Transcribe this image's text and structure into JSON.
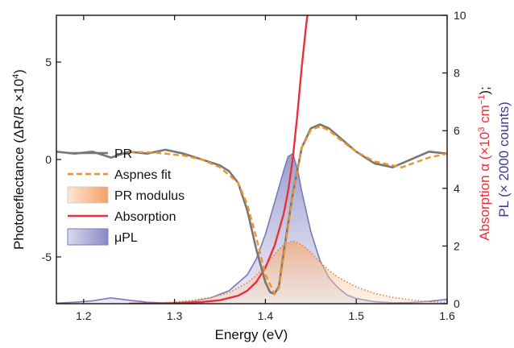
{
  "chart_data": {
    "type": "line",
    "xlabel": "Energy (eV)",
    "x_range": [
      1.17,
      1.6
    ],
    "x_ticks": [
      "1.2",
      "1.3",
      "1.4",
      "1.5",
      "1.6"
    ],
    "left_axis": {
      "label": "Photoreflectance (ΔR/R ×10⁴)",
      "label_parts": [
        "Photoreflectance (ΔR/R ×10",
        "4",
        ")"
      ],
      "range": [
        -7.4,
        7.4
      ],
      "ticks": [
        "5",
        "0",
        "-5"
      ]
    },
    "right_axis": {
      "label_absorption": "Absorption α (×10³ cm⁻¹);",
      "label_absorption_parts": [
        "Absorption α (×10",
        "3",
        " cm",
        "−1",
        ");"
      ],
      "label_pl": "PL (× 2000 counts)",
      "range": [
        0,
        10
      ],
      "ticks": [
        "0",
        "2",
        "4",
        "6",
        "8",
        "10"
      ]
    },
    "colors": {
      "pr": "#777777",
      "aspnes": "#f0922f",
      "pr_modulus": "#f6a56a",
      "absorption": "#e8313a",
      "pl": "#7a7ab8",
      "absorption_axis": "#e8313a",
      "pl_axis": "#3b3b93"
    },
    "legend": [
      {
        "label": "PR",
        "style": "pr-line"
      },
      {
        "label": "Aspnes fit",
        "style": "aspnes-dash"
      },
      {
        "label": "PR modulus",
        "style": "modulus-patch"
      },
      {
        "label": "Absorption",
        "style": "absorption-line"
      },
      {
        "label": "μPL",
        "style": "pl-patch"
      }
    ],
    "series": [
      {
        "name": "PR",
        "axis": "left",
        "x": [
          1.17,
          1.19,
          1.21,
          1.23,
          1.25,
          1.27,
          1.29,
          1.31,
          1.33,
          1.35,
          1.36,
          1.37,
          1.38,
          1.39,
          1.4,
          1.405,
          1.41,
          1.415,
          1.42,
          1.43,
          1.44,
          1.45,
          1.46,
          1.47,
          1.48,
          1.49,
          1.5,
          1.52,
          1.54,
          1.56,
          1.58,
          1.6
        ],
        "y": [
          0.4,
          0.3,
          0.4,
          0.1,
          0.4,
          0.3,
          0.5,
          0.3,
          0.0,
          -0.3,
          -0.6,
          -1.2,
          -2.6,
          -4.6,
          -6.3,
          -6.8,
          -6.9,
          -6.5,
          -4.8,
          -1.8,
          0.6,
          1.6,
          1.8,
          1.6,
          1.2,
          0.8,
          0.4,
          -0.2,
          -0.4,
          0.0,
          0.4,
          0.3
        ]
      },
      {
        "name": "Aspnes fit",
        "axis": "left",
        "x": [
          1.25,
          1.28,
          1.31,
          1.33,
          1.35,
          1.37,
          1.38,
          1.39,
          1.4,
          1.41,
          1.415,
          1.42,
          1.43,
          1.44,
          1.45,
          1.46,
          1.47,
          1.48,
          1.5,
          1.52,
          1.55,
          1.58,
          1.6
        ],
        "y": [
          0.4,
          0.35,
          0.2,
          0.0,
          -0.4,
          -1.2,
          -2.3,
          -4.0,
          -5.9,
          -6.9,
          -6.6,
          -5.0,
          -1.9,
          0.6,
          1.5,
          1.7,
          1.5,
          1.1,
          0.4,
          -0.1,
          -0.4,
          0.1,
          0.3
        ]
      },
      {
        "name": "PR modulus",
        "axis": "right",
        "x": [
          1.28,
          1.3,
          1.32,
          1.34,
          1.36,
          1.38,
          1.39,
          1.4,
          1.41,
          1.42,
          1.43,
          1.44,
          1.45,
          1.46,
          1.47,
          1.48,
          1.5,
          1.52,
          1.54,
          1.56,
          1.58,
          1.6
        ],
        "y": [
          0.02,
          0.06,
          0.12,
          0.22,
          0.38,
          0.72,
          0.98,
          1.32,
          1.72,
          2.05,
          2.18,
          2.05,
          1.78,
          1.45,
          1.15,
          0.92,
          0.58,
          0.36,
          0.22,
          0.13,
          0.07,
          0.04
        ]
      },
      {
        "name": "Absorption",
        "axis": "right",
        "x": [
          1.25,
          1.3,
          1.33,
          1.35,
          1.37,
          1.38,
          1.39,
          1.4,
          1.41,
          1.42,
          1.425,
          1.43,
          1.435,
          1.44,
          1.445,
          1.448
        ],
        "y": [
          0.0,
          0.02,
          0.06,
          0.12,
          0.28,
          0.45,
          0.75,
          1.25,
          2.0,
          3.1,
          3.9,
          5.0,
          6.5,
          8.2,
          9.7,
          10.4
        ]
      },
      {
        "name": "μPL",
        "axis": "right",
        "x": [
          1.17,
          1.19,
          1.21,
          1.23,
          1.25,
          1.27,
          1.29,
          1.3,
          1.32,
          1.34,
          1.36,
          1.38,
          1.39,
          1.4,
          1.41,
          1.42,
          1.425,
          1.43,
          1.435,
          1.44,
          1.45,
          1.46,
          1.47,
          1.48,
          1.49,
          1.5,
          1.52,
          1.54,
          1.56,
          1.58,
          1.6
        ],
        "y": [
          0.02,
          0.05,
          0.1,
          0.2,
          0.12,
          0.05,
          0.02,
          0.03,
          0.08,
          0.2,
          0.45,
          1.0,
          1.55,
          2.4,
          3.5,
          4.6,
          5.1,
          5.2,
          4.7,
          3.9,
          2.5,
          1.5,
          0.9,
          0.55,
          0.3,
          0.18,
          0.07,
          0.03,
          0.04,
          0.08,
          0.15
        ]
      }
    ]
  }
}
